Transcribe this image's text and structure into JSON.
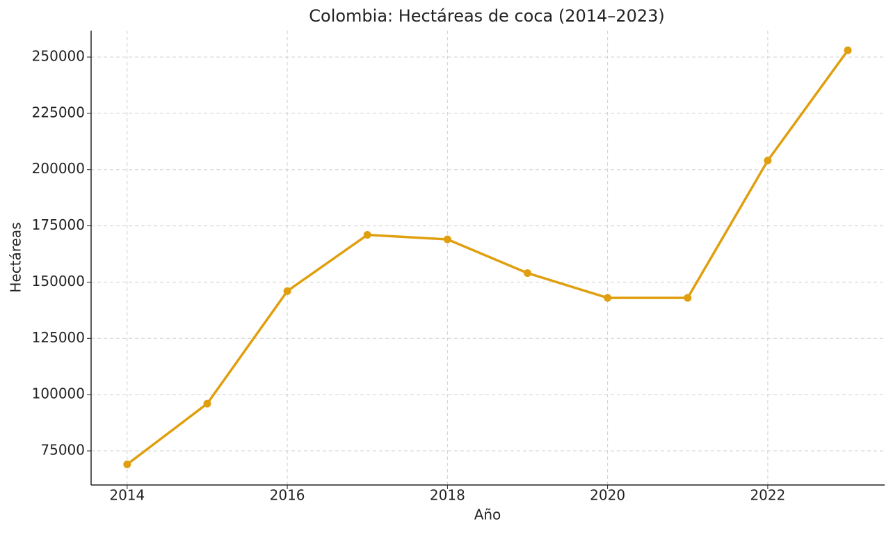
{
  "chart_data": {
    "type": "line",
    "title": "Colombia: Hectáreas de coca (2014–2023)",
    "x_label": "Año",
    "y_label": "Hectáreas",
    "x": [
      2014,
      2015,
      2016,
      2017,
      2018,
      2019,
      2020,
      2021,
      2022,
      2023
    ],
    "series": [
      {
        "name": "Hectáreas",
        "color": "#e09f0e",
        "values": [
          69000,
          96000,
          146000,
          171000,
          169000,
          154000,
          143000,
          143000,
          204000,
          253000
        ]
      }
    ],
    "xlim": [
      2013.55,
      2023.46
    ],
    "xticks": [
      2014,
      2016,
      2018,
      2020,
      2022
    ],
    "ylim": [
      59850,
      261750
    ],
    "yticks": [
      75000,
      100000,
      125000,
      150000,
      175000,
      200000,
      225000,
      250000
    ],
    "grid": true
  }
}
